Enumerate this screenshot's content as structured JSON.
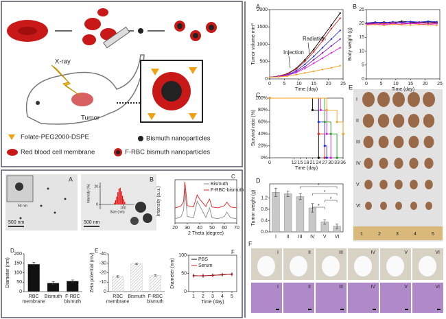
{
  "schematic": {
    "xray": "X-ray",
    "tumor": "Tumor",
    "legend": [
      "Folate-PEG2000-DSPE",
      "Bismuth nanoparticles",
      "Red blood cell membrane",
      "F-RBC bismuth nanoparticles"
    ]
  },
  "tem": [
    {
      "label": "A",
      "scale": "500 nm",
      "inset_scale": "50 nm"
    },
    {
      "label": "B",
      "scale": "500 nm"
    }
  ],
  "photos": {
    "label": "E",
    "rows": [
      "I",
      "II",
      "III",
      "IV",
      "V",
      "VI"
    ],
    "ruler": [
      "1",
      "2",
      "3",
      "4",
      "5"
    ]
  },
  "mice": {
    "label": "F",
    "groups": [
      "I",
      "II",
      "III",
      "IV",
      "V",
      "VI"
    ]
  },
  "chart_data": [
    {
      "type": "line",
      "label": "A",
      "xlabel": "Time (day)",
      "ylabel": "Tumor volume mm³",
      "annotations": [
        "Injection",
        "Radiation"
      ],
      "x": [
        0,
        3,
        6,
        9,
        12,
        15,
        18,
        21,
        24
      ],
      "xlim": [
        0,
        25
      ],
      "xticks": [
        0,
        5,
        10,
        15,
        20,
        25
      ],
      "ylim": [
        0,
        2000
      ],
      "yticks": [
        0,
        500,
        1000,
        1500,
        2000
      ],
      "series": [
        {
          "color": "#000000",
          "values": [
            50,
            80,
            150,
            300,
            550,
            850,
            1200,
            1550,
            1900
          ]
        },
        {
          "color": "#e02020",
          "values": [
            50,
            80,
            140,
            280,
            500,
            780,
            1100,
            1450,
            1750
          ]
        },
        {
          "color": "#2030e0",
          "values": [
            50,
            70,
            120,
            230,
            420,
            650,
            900,
            1150,
            1400
          ]
        },
        {
          "color": "#8020c0",
          "values": [
            50,
            70,
            110,
            200,
            350,
            550,
            750,
            950,
            1150
          ]
        },
        {
          "color": "#e020e0",
          "values": [
            50,
            60,
            100,
            180,
            300,
            450,
            600,
            750,
            900
          ]
        },
        {
          "color": "#f0a020",
          "values": [
            50,
            55,
            80,
            120,
            170,
            220,
            270,
            320,
            380
          ]
        }
      ]
    },
    {
      "type": "line",
      "label": "B",
      "xlabel": "Time (day)",
      "ylabel": "Body weight (g)",
      "x": [
        0,
        3,
        6,
        9,
        12,
        15,
        18,
        21,
        24
      ],
      "xlim": [
        0,
        25
      ],
      "xticks": [
        0,
        5,
        10,
        15,
        20,
        25
      ],
      "ylim": [
        0,
        25
      ],
      "yticks": [
        0,
        5,
        10,
        15,
        20,
        25
      ],
      "series": [
        {
          "color": "#000000",
          "values": [
            20,
            20.3,
            20.5,
            20.2,
            20.8,
            20.5,
            20.3,
            20.6,
            20.4
          ]
        },
        {
          "color": "#e02020",
          "values": [
            20,
            20.1,
            19.8,
            20.3,
            20.1,
            19.9,
            20.2,
            20,
            20.1
          ]
        },
        {
          "color": "#2030e0",
          "values": [
            20.2,
            20.5,
            20.3,
            20.6,
            20.4,
            20.7,
            20.5,
            20.8,
            20.6
          ]
        },
        {
          "color": "#8020c0",
          "values": [
            19.8,
            20,
            20.2,
            19.9,
            20.3,
            20.1,
            20.4,
            20.2,
            20.3
          ]
        },
        {
          "color": "#e020e0",
          "values": [
            19.6,
            19.8,
            19.5,
            19.9,
            19.7,
            20,
            19.8,
            19.6,
            19.9
          ]
        },
        {
          "color": "#f0a020",
          "values": [
            19.4,
            19.6,
            19.3,
            19.7,
            19.5,
            19.4,
            19.6,
            19.5,
            19.3
          ]
        }
      ]
    },
    {
      "type": "step",
      "label": "C",
      "xlabel": "Time (day)",
      "ylabel": "Survival ratio (%)",
      "xlim": [
        0,
        36
      ],
      "xticks": [
        0,
        12,
        15,
        18,
        21,
        24,
        27,
        30,
        33,
        36
      ],
      "ylim": [
        0,
        100
      ],
      "yticks": [
        {
          "value": 0,
          "label": "0%"
        },
        {
          "value": 20,
          "label": "20%"
        },
        {
          "value": 40,
          "label": "40%"
        },
        {
          "value": 60,
          "label": "60%"
        },
        {
          "value": 80,
          "label": "80%"
        },
        {
          "value": 100,
          "label": "100%"
        }
      ],
      "series": [
        {
          "color": "#000000",
          "x": [
            0,
            21,
            24
          ],
          "values": [
            100,
            80,
            0
          ]
        },
        {
          "color": "#e02020",
          "x": [
            0,
            24,
            27
          ],
          "values": [
            100,
            40,
            0
          ]
        },
        {
          "color": "#2030e0",
          "x": [
            0,
            24,
            27,
            28
          ],
          "values": [
            100,
            60,
            20,
            0
          ]
        },
        {
          "color": "#e020e0",
          "x": [
            0,
            25,
            28,
            30
          ],
          "values": [
            100,
            80,
            40,
            0
          ]
        },
        {
          "color": "#20a020",
          "x": [
            0,
            27,
            30,
            33
          ],
          "values": [
            100,
            60,
            40,
            0
          ]
        },
        {
          "color": "#f0a020",
          "x": [
            0,
            28,
            33,
            36
          ],
          "values": [
            100,
            80,
            60,
            40
          ]
        }
      ]
    },
    {
      "type": "bar",
      "label": "D",
      "ylabel": "Tumor weight (g)",
      "annotations": [
        "*",
        "*",
        "*",
        "*"
      ],
      "categories": [
        "I",
        "II",
        "III",
        "IV",
        "V",
        "VI"
      ],
      "ylim": [
        0,
        1.7
      ],
      "yticks": [
        {
          "value": 0,
          "label": "0.0"
        },
        {
          "value": 0.4,
          "label": "0.4"
        },
        {
          "value": 0.8,
          "label": "0.8"
        },
        {
          "value": 1.2,
          "label": "1.2"
        }
      ],
      "series": [
        {
          "color": "#c8c8c8",
          "values": [
            1.4,
            1.35,
            1.25,
            0.85,
            0.35,
            0.2
          ],
          "errors": [
            0.15,
            0.1,
            0.1,
            0.15,
            0.08,
            0.08
          ]
        }
      ]
    },
    {
      "type": "bar",
      "label": "D",
      "ylabel": "Diameter (nm)",
      "categories": [
        "RBC membrane",
        "Bismuth",
        "F-RBC bismuth"
      ],
      "ylim": [
        0,
        200
      ],
      "yticks": [
        0,
        50,
        100,
        150,
        200
      ],
      "series": [
        {
          "color": "#111111",
          "values": [
            145,
            45,
            55
          ],
          "errors": [
            10,
            8,
            7
          ]
        }
      ]
    },
    {
      "type": "bar",
      "label": "E",
      "ylabel": "Zeta potential (mv)",
      "categories": [
        "RBC membrane",
        "Bismuth",
        "F-RBC bismuth"
      ],
      "ylim": [
        0,
        -40
      ],
      "yticks": [
        0,
        -10,
        -20,
        -30,
        -40
      ],
      "series": [
        {
          "color": "#d4d4d4",
          "values": [
            -16,
            -29.5,
            -17
          ],
          "errors": [
            0.8,
            0.8,
            0.8
          ]
        }
      ]
    },
    {
      "type": "line",
      "label": "F",
      "xlabel": "Time (day)",
      "ylabel": "Diameter (nm)",
      "legend": "upper left",
      "x": [
        1,
        2,
        3,
        4,
        5
      ],
      "xlim": [
        0.5,
        5.5
      ],
      "xticks": [
        1,
        2,
        3,
        4,
        5
      ],
      "ylim": [
        0,
        100
      ],
      "yticks": [
        0,
        50,
        100
      ],
      "series": [
        {
          "name": "PBS",
          "color": "#000000",
          "values": [
            44,
            43,
            45,
            46,
            48
          ],
          "errors": [
            5,
            5,
            5,
            5,
            5
          ]
        },
        {
          "name": "Serum",
          "color": "#c02020",
          "values": [
            43,
            44,
            44,
            47,
            47
          ],
          "errors": [
            5,
            5,
            5,
            5,
            5
          ]
        }
      ]
    },
    {
      "type": "histogram",
      "xlabel": "Size (nm)",
      "ylabel": "Intensity (%)",
      "color": "#e01010",
      "bins": [
        60,
        65,
        70,
        75,
        80,
        85,
        90,
        95,
        100,
        105,
        110
      ],
      "counts": [
        2,
        5,
        9,
        14,
        18,
        19,
        15,
        10,
        6,
        3
      ],
      "xlim": [
        0,
        150
      ],
      "xticks": [
        0,
        100
      ],
      "ylim": [
        0,
        25
      ],
      "yticks": [
        0,
        20
      ]
    },
    {
      "type": "line",
      "label": "C",
      "xlabel": "2 Theta (degree)",
      "ylabel": "Intensity (a.u.)",
      "legend": "upper right",
      "x": [
        20,
        23,
        25,
        27,
        28,
        30,
        35,
        38,
        40,
        45,
        46,
        48,
        50,
        55,
        60,
        62,
        65,
        70
      ],
      "xlim": [
        20,
        70
      ],
      "xticks": [
        20,
        30,
        40,
        50,
        60,
        70
      ],
      "ylim": [
        0,
        10
      ],
      "series": [
        {
          "name": "Bismuth",
          "color": "#888888",
          "values": [
            1,
            1.2,
            1.5,
            3,
            8,
            1.5,
            1.2,
            5,
            4,
            1.3,
            2,
            3.5,
            1.2,
            1,
            1.5,
            2.5,
            1.2,
            1
          ]
        },
        {
          "name": "F-RBC-bismuth",
          "color": "#e02020",
          "values": [
            3.5,
            3.7,
            4,
            5,
            9.5,
            4,
            3.7,
            6.5,
            5.5,
            3.8,
            4.5,
            5.5,
            3.7,
            3.5,
            4,
            4.8,
            3.7,
            3.5
          ]
        }
      ]
    }
  ]
}
